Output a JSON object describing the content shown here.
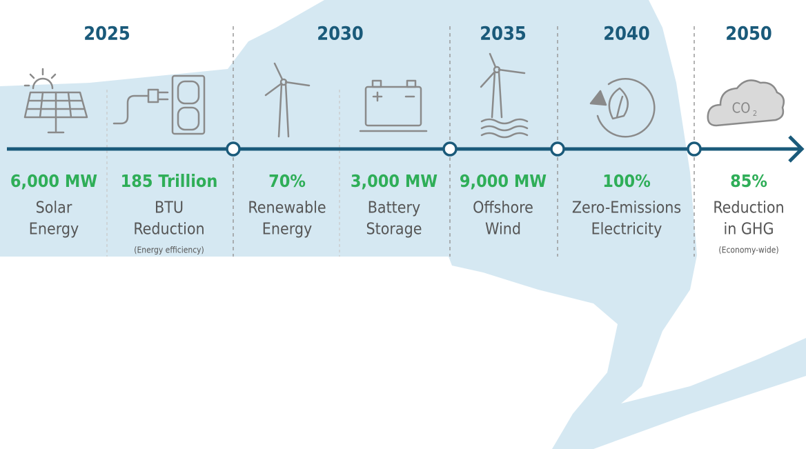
{
  "years": [
    "2025",
    "2030",
    "2035",
    "2040",
    "2050"
  ],
  "items": [
    {
      "value": "6,000 MW",
      "label": [
        "Solar",
        "Energy"
      ]
    },
    {
      "value": "185 Trillion",
      "label": [
        "BTU",
        "Reduction"
      ],
      "note": "(Energy efficiency)"
    },
    {
      "value": "70%",
      "label": [
        "Renewable",
        "Energy"
      ]
    },
    {
      "value": "3,000 MW",
      "label": [
        "Battery",
        "Storage"
      ]
    },
    {
      "value": "9,000 MW",
      "label": [
        "Offshore",
        "Wind"
      ]
    },
    {
      "value": "100%",
      "label": [
        "Zero-Emissions",
        "Electricity"
      ]
    },
    {
      "value": "85%",
      "label": [
        "Reduction",
        "in GHG"
      ],
      "note": "(Economy-wide)"
    }
  ],
  "cloud_text": {
    "main": "CO",
    "sub": "2"
  }
}
